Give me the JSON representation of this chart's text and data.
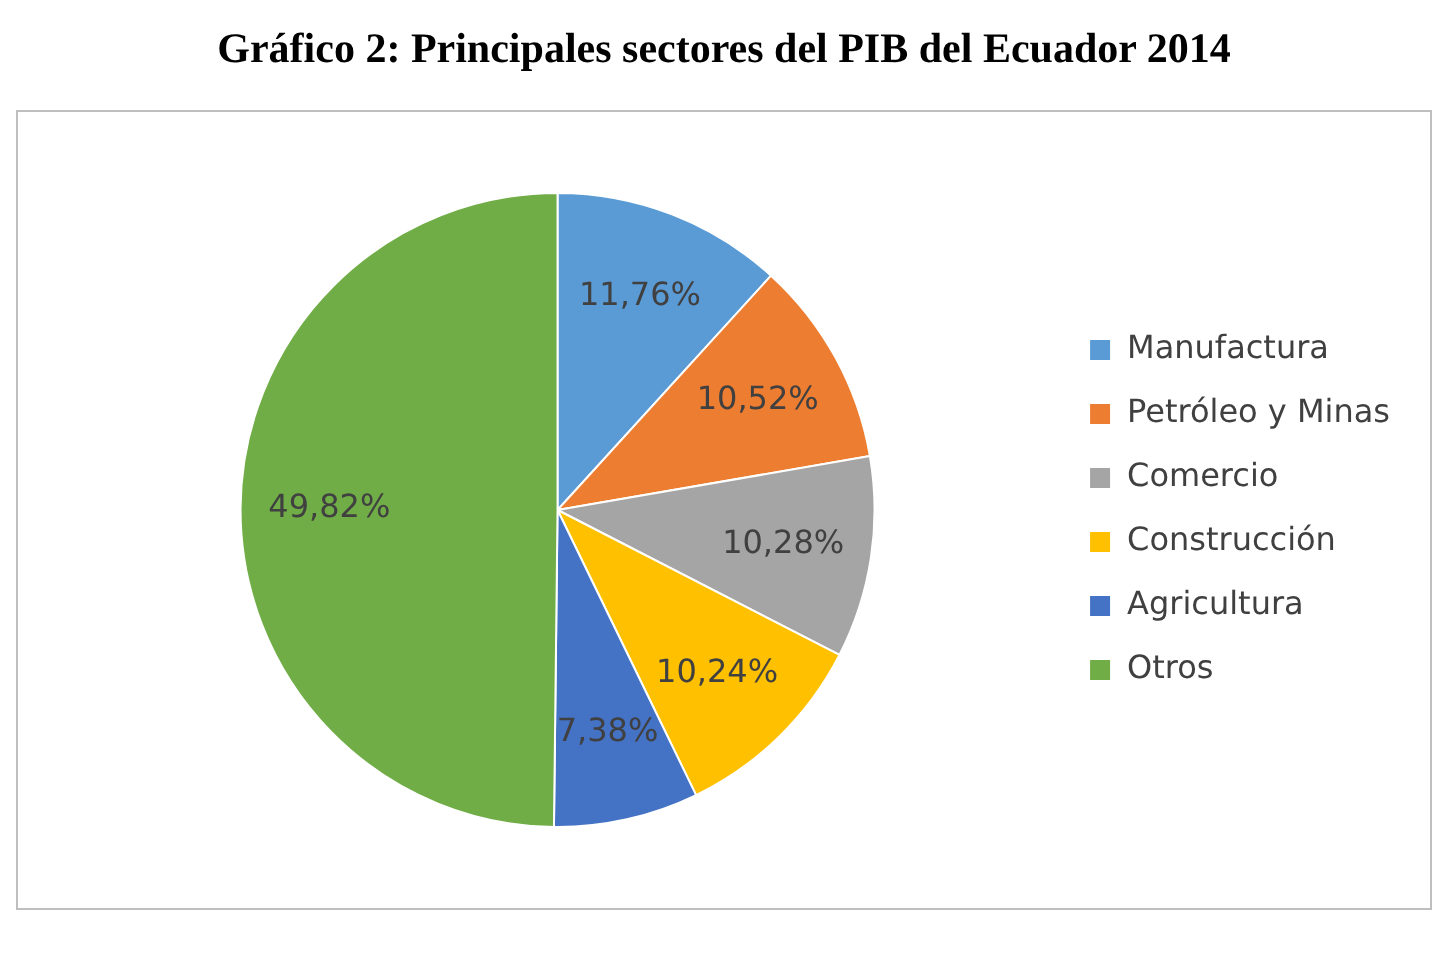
{
  "chart_data": {
    "type": "pie",
    "title": "Gráfico 2: Principales sectores del PIB del Ecuador 2014",
    "categories": [
      "Manufactura",
      "Petróleo y Minas",
      "Comercio",
      "Construcción",
      "Agricultura",
      "Otros"
    ],
    "values": [
      11.76,
      10.52,
      10.28,
      10.24,
      7.38,
      49.82
    ],
    "value_labels": [
      "11,76%",
      "10,52%",
      "10,28%",
      "10,24%",
      "7,38%",
      "49,82%"
    ],
    "colors": [
      "#5b9bd5",
      "#ed7d31",
      "#a5a5a5",
      "#ffc000",
      "#4472c4",
      "#70ad47"
    ],
    "legend": "right"
  }
}
